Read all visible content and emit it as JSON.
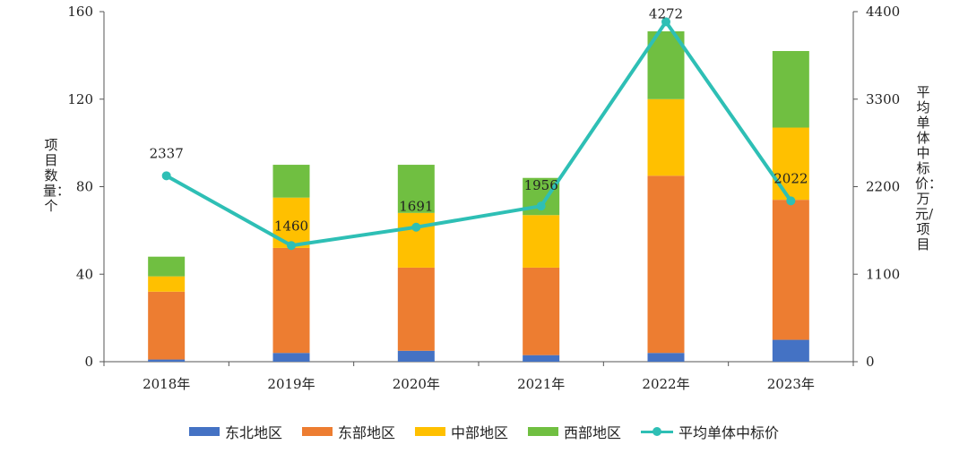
{
  "chart_data": {
    "type": "bar",
    "categories": [
      "2018年",
      "2019年",
      "2020年",
      "2021年",
      "2022年",
      "2023年"
    ],
    "series": [
      {
        "name": "东北地区",
        "type": "bar",
        "axis": "left",
        "color": "#4472C4",
        "values": [
          1,
          4,
          5,
          3,
          4,
          10
        ]
      },
      {
        "name": "东部地区",
        "type": "bar",
        "axis": "left",
        "color": "#ED7D31",
        "values": [
          31,
          48,
          38,
          40,
          81,
          64
        ]
      },
      {
        "name": "中部地区",
        "type": "bar",
        "axis": "left",
        "color": "#FFC000",
        "values": [
          7,
          23,
          25,
          24,
          35,
          33
        ]
      },
      {
        "name": "西部地区",
        "type": "bar",
        "axis": "left",
        "color": "#70BF41",
        "values": [
          9,
          15,
          22,
          17,
          31,
          35
        ]
      },
      {
        "name": "平均单体中标价",
        "type": "line",
        "axis": "right",
        "color": "#2EBFB5",
        "values": [
          2337,
          1460,
          1691,
          1956,
          4272,
          2022
        ]
      }
    ],
    "line_labels": [
      "2337",
      "1460",
      "1691",
      "1956",
      "4272",
      "2022"
    ],
    "stacked": true,
    "ylabel": "项目数量：个",
    "y2label": "平均单体中标价：万元/项目",
    "ylim": [
      0,
      160
    ],
    "y2lim": [
      0,
      4400
    ],
    "yticks": [
      "0",
      "40",
      "80",
      "120",
      "160"
    ],
    "y2ticks": [
      "0",
      "1100",
      "2200",
      "3300",
      "4400"
    ],
    "grid": false,
    "legend_position": "bottom"
  }
}
